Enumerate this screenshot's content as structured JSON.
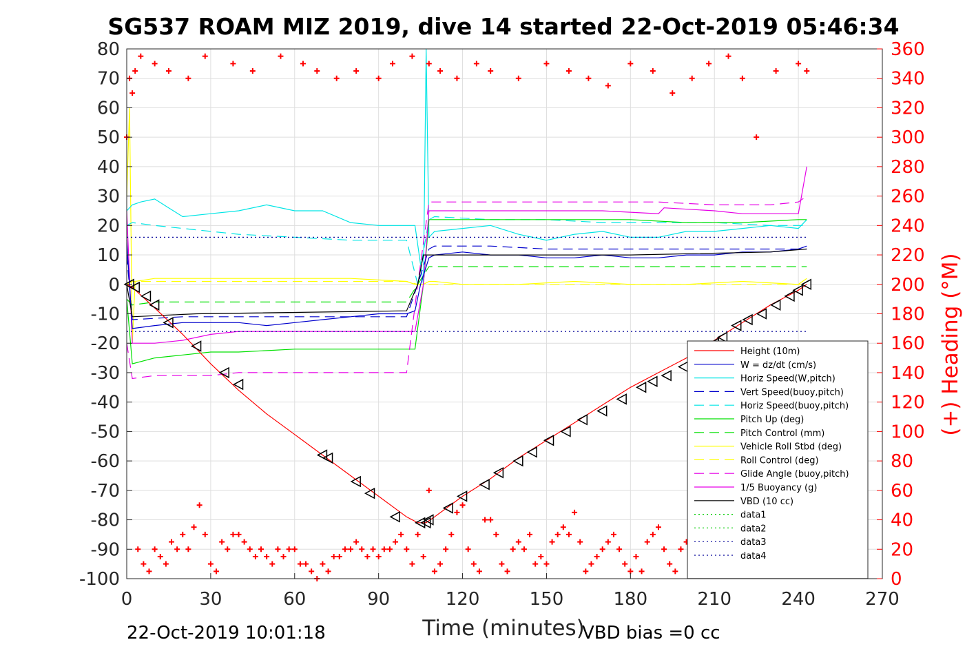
{
  "chart_data": {
    "type": "line",
    "title": "SG537 ROAM MIZ 2019, dive 14 started 22-Oct-2019 05:46:34",
    "xlabel": "Time (minutes)",
    "ylabel_right": "(+) Heading (°M)",
    "xlim": [
      0,
      270
    ],
    "ylim_left": [
      -100,
      80
    ],
    "ylim_right": [
      0,
      360
    ],
    "x_ticks": [
      0,
      30,
      60,
      90,
      120,
      150,
      180,
      210,
      240,
      270
    ],
    "y_ticks_left": [
      -100,
      -90,
      -80,
      -70,
      -60,
      -50,
      -40,
      -30,
      -20,
      -10,
      0,
      10,
      20,
      30,
      40,
      50,
      60,
      70,
      80
    ],
    "y_ticks_right": [
      0,
      20,
      40,
      60,
      80,
      100,
      120,
      140,
      160,
      180,
      200,
      220,
      240,
      260,
      280,
      300,
      320,
      340,
      360
    ],
    "grid": true,
    "legend_position": "lower-right",
    "footer_left": "22-Oct-2019 10:01:18",
    "footer_right": "VBD bias =0 cc",
    "series": [
      {
        "name": "Height (10m)",
        "color": "#ff0000",
        "style": "solid",
        "x": [
          0,
          2,
          10,
          20,
          30,
          40,
          50,
          60,
          70,
          80,
          90,
          100,
          104,
          107,
          110,
          120,
          130,
          140,
          150,
          160,
          170,
          180,
          190,
          200,
          210,
          220,
          230,
          240,
          243
        ],
        "y": [
          0,
          -1,
          -8,
          -17,
          -27,
          -36,
          -44,
          -51,
          -58,
          -65,
          -72,
          -79,
          -81,
          -81,
          -79,
          -72,
          -66,
          -59,
          -53,
          -47,
          -41,
          -35,
          -30,
          -25,
          -19,
          -13,
          -7,
          -2,
          0
        ]
      },
      {
        "name": "W = dz/dt (cm/s)",
        "color": "#0000cc",
        "style": "solid",
        "x": [
          0,
          2,
          10,
          20,
          30,
          40,
          50,
          60,
          70,
          80,
          90,
          100,
          103,
          105,
          108,
          110,
          120,
          130,
          140,
          150,
          160,
          170,
          180,
          190,
          200,
          210,
          220,
          230,
          240,
          243
        ],
        "y": [
          15,
          -15,
          -14,
          -13,
          -13,
          -13,
          -14,
          -13,
          -12,
          -11,
          -10,
          -10,
          -9,
          0,
          9,
          10,
          11,
          10,
          10,
          9,
          9,
          10,
          9,
          9,
          10,
          10,
          11,
          11,
          12,
          13
        ]
      },
      {
        "name": "Horiz Speed(W,pitch)",
        "color": "#00e5e5",
        "style": "solid",
        "x": [
          0,
          2,
          5,
          10,
          15,
          20,
          30,
          40,
          50,
          60,
          70,
          80,
          90,
          100,
          103,
          106,
          107,
          108,
          110,
          120,
          130,
          140,
          150,
          160,
          170,
          180,
          190,
          200,
          210,
          220,
          230,
          240,
          243
        ],
        "y": [
          25,
          27,
          28,
          29,
          26,
          23,
          24,
          25,
          27,
          25,
          25,
          21,
          20,
          20,
          20,
          0,
          80,
          16,
          18,
          19,
          20,
          17,
          15,
          17,
          18,
          16,
          16,
          18,
          18,
          19,
          20,
          19,
          22
        ]
      },
      {
        "name": "Vert Speed(buoy,pitch)",
        "color": "#0000cc",
        "style": "dashed",
        "x": [
          0,
          2,
          20,
          40,
          60,
          80,
          100,
          104,
          108,
          110,
          130,
          150,
          170,
          190,
          210,
          230,
          243
        ],
        "y": [
          10,
          -12,
          -11,
          -11,
          -11,
          -11,
          -11,
          0,
          12,
          13,
          13,
          12,
          12,
          12,
          12,
          12,
          12
        ]
      },
      {
        "name": "Horiz Speed(buoy,pitch)",
        "color": "#00e5e5",
        "style": "dashed",
        "x": [
          0,
          2,
          10,
          20,
          30,
          40,
          60,
          80,
          100,
          104,
          108,
          110,
          130,
          150,
          170,
          190,
          210,
          230,
          243
        ],
        "y": [
          20,
          21,
          20,
          19,
          18,
          17,
          16,
          15,
          15,
          0,
          22,
          23,
          22,
          22,
          21,
          21,
          21,
          20,
          20
        ]
      },
      {
        "name": "Pitch Up (deg)",
        "color": "#00e000",
        "style": "solid",
        "x": [
          0,
          2,
          10,
          20,
          30,
          40,
          60,
          80,
          100,
          103,
          106,
          108,
          110,
          120,
          140,
          160,
          180,
          200,
          220,
          240,
          243
        ],
        "y": [
          -5,
          -27,
          -25,
          -24,
          -23,
          -23,
          -22,
          -22,
          -22,
          -22,
          0,
          22,
          22,
          22,
          22,
          22,
          22,
          21,
          21,
          22,
          22
        ]
      },
      {
        "name": "Pitch Control (mm)",
        "color": "#00e000",
        "style": "dashed",
        "x": [
          0,
          2,
          10,
          40,
          80,
          100,
          104,
          108,
          110,
          140,
          170,
          200,
          230,
          243
        ],
        "y": [
          -5,
          -7,
          -6,
          -6,
          -6,
          -6,
          0,
          6,
          6,
          6,
          6,
          6,
          6,
          6
        ]
      },
      {
        "name": "Vehicle Roll Stbd (deg)",
        "color": "#ffff00",
        "style": "solid",
        "x": [
          0,
          1,
          2,
          3,
          10,
          20,
          30,
          40,
          60,
          80,
          100,
          103,
          106,
          108,
          110,
          120,
          140,
          160,
          180,
          200,
          220,
          240,
          243
        ],
        "y": [
          30,
          60,
          -20,
          1,
          2,
          2,
          2,
          2,
          2,
          2,
          1,
          0,
          0,
          1,
          1,
          0,
          0,
          1,
          0,
          0,
          1,
          0,
          2
        ]
      },
      {
        "name": "Roll Control (deg)",
        "color": "#ffff00",
        "style": "dashed",
        "x": [
          0,
          2,
          20,
          40,
          60,
          80,
          100,
          104,
          108,
          130,
          160,
          190,
          220,
          243
        ],
        "y": [
          0,
          1,
          1,
          1,
          1,
          1,
          1,
          0,
          0,
          0,
          0,
          0,
          0,
          0
        ]
      },
      {
        "name": "Glide Angle (buoy,pitch)",
        "color": "#e600e6",
        "style": "dashed",
        "x": [
          0,
          2,
          10,
          20,
          30,
          40,
          60,
          80,
          100,
          104,
          108,
          110,
          130,
          150,
          170,
          190,
          210,
          230,
          240,
          243
        ],
        "y": [
          -20,
          -32,
          -31,
          -31,
          -31,
          -30,
          -30,
          -30,
          -30,
          0,
          28,
          28,
          28,
          28,
          28,
          28,
          27,
          27,
          28,
          30
        ]
      },
      {
        "name": "1/5 Buoyancy (g)",
        "color": "#e600e6",
        "style": "solid",
        "x": [
          0,
          2,
          10,
          20,
          30,
          40,
          60,
          80,
          100,
          103,
          106,
          108,
          110,
          130,
          150,
          170,
          190,
          192,
          210,
          220,
          230,
          240,
          243
        ],
        "y": [
          25,
          -20,
          -20,
          -19,
          -17,
          -16,
          -16,
          -16,
          -16,
          -16,
          0,
          25,
          25,
          25,
          25,
          25,
          24,
          26,
          25,
          24,
          24,
          24,
          40
        ]
      },
      {
        "name": "VBD (10 cc)",
        "color": "#000000",
        "style": "solid",
        "x": [
          0,
          2,
          25,
          100,
          104,
          106,
          110,
          180,
          230,
          243
        ],
        "y": [
          0,
          -11,
          -10,
          -9,
          0,
          10,
          10,
          10,
          11,
          12
        ]
      },
      {
        "name": "data1",
        "color": "#00cc00",
        "style": "dotted",
        "x": [],
        "y": []
      },
      {
        "name": "data2",
        "color": "#00cc00",
        "style": "dotted",
        "x": [],
        "y": []
      },
      {
        "name": "data3",
        "color": "#000099",
        "style": "dotted",
        "x": [
          0,
          243
        ],
        "y": [
          16,
          16
        ]
      },
      {
        "name": "data4",
        "color": "#000099",
        "style": "dotted",
        "x": [
          0,
          243
        ],
        "y": [
          -16,
          -16
        ]
      }
    ],
    "heading": {
      "color": "#ff0000",
      "marker": "+",
      "x": [
        0,
        2,
        4,
        6,
        8,
        10,
        12,
        14,
        16,
        18,
        20,
        22,
        24,
        26,
        28,
        30,
        32,
        34,
        36,
        38,
        40,
        42,
        44,
        46,
        48,
        50,
        52,
        54,
        56,
        58,
        60,
        62,
        64,
        66,
        68,
        70,
        72,
        74,
        76,
        78,
        80,
        82,
        84,
        86,
        88,
        90,
        92,
        94,
        96,
        98,
        100,
        102,
        104,
        106,
        108,
        110,
        112,
        114,
        116,
        118,
        120,
        122,
        124,
        126,
        128,
        130,
        132,
        134,
        136,
        138,
        140,
        142,
        144,
        146,
        148,
        150,
        152,
        154,
        156,
        158,
        160,
        162,
        164,
        166,
        168,
        170,
        172,
        174,
        176,
        178,
        180,
        182,
        184,
        186,
        188,
        190,
        192,
        194,
        196,
        198,
        200,
        202,
        204,
        206,
        208,
        210,
        212,
        214,
        216,
        218,
        220,
        222,
        224,
        226,
        228,
        230,
        232,
        234,
        236,
        238,
        240,
        242
      ],
      "y": [
        300,
        330,
        20,
        10,
        5,
        20,
        15,
        10,
        25,
        20,
        30,
        20,
        35,
        50,
        30,
        10,
        5,
        25,
        20,
        30,
        30,
        25,
        20,
        15,
        20,
        15,
        10,
        20,
        15,
        20,
        20,
        10,
        10,
        5,
        0,
        10,
        5,
        15,
        15,
        20,
        20,
        25,
        20,
        15,
        20,
        15,
        20,
        20,
        25,
        30,
        20,
        10,
        30,
        15,
        60,
        5,
        10,
        20,
        30,
        45,
        50,
        20,
        10,
        5,
        40,
        40,
        30,
        10,
        5,
        20,
        25,
        20,
        30,
        10,
        15,
        10,
        25,
        30,
        35,
        30,
        45,
        25,
        5,
        10,
        15,
        20,
        25,
        30,
        20,
        10,
        5,
        15,
        5,
        25,
        30,
        35,
        20,
        10,
        5,
        20,
        25,
        60,
        30,
        10,
        15,
        40,
        30,
        15,
        20,
        15,
        25,
        20,
        10,
        15,
        20,
        5,
        5,
        10,
        15,
        20,
        20,
        10
      ]
    },
    "heading_top": {
      "x": [
        1,
        3,
        5,
        10,
        15,
        22,
        28,
        38,
        45,
        55,
        63,
        68,
        75,
        82,
        90,
        95,
        102,
        108,
        112,
        118,
        125,
        130,
        140,
        150,
        158,
        165,
        172,
        180,
        188,
        195,
        202,
        208,
        215,
        220,
        225,
        232,
        240,
        243
      ],
      "y": [
        340,
        345,
        355,
        350,
        345,
        340,
        355,
        350,
        345,
        355,
        350,
        345,
        340,
        345,
        340,
        350,
        355,
        350,
        345,
        340,
        350,
        345,
        340,
        350,
        345,
        340,
        335,
        350,
        345,
        330,
        340,
        350,
        355,
        340,
        300,
        345,
        350,
        345
      ]
    },
    "markers": {
      "x": [
        1,
        3,
        7,
        10,
        15,
        25,
        35,
        40,
        70,
        72,
        82,
        87,
        96,
        105,
        107,
        108,
        115,
        120,
        128,
        133,
        140,
        145,
        151,
        157,
        163,
        170,
        177,
        184,
        188,
        193,
        199,
        205,
        210,
        213,
        218,
        222,
        227,
        232,
        237,
        240,
        243
      ],
      "y": [
        0,
        -1,
        -4,
        -7,
        -13,
        -21,
        -30,
        -34,
        -58,
        -59,
        -67,
        -71,
        -79,
        -81,
        -81,
        -80,
        -76,
        -72,
        -68,
        -64,
        -60,
        -57,
        -53,
        -50,
        -46,
        -43,
        -39,
        -35,
        -33,
        -31,
        -28,
        -24,
        -20,
        -18,
        -14,
        -12,
        -10,
        -7,
        -4,
        -2,
        0
      ]
    }
  }
}
